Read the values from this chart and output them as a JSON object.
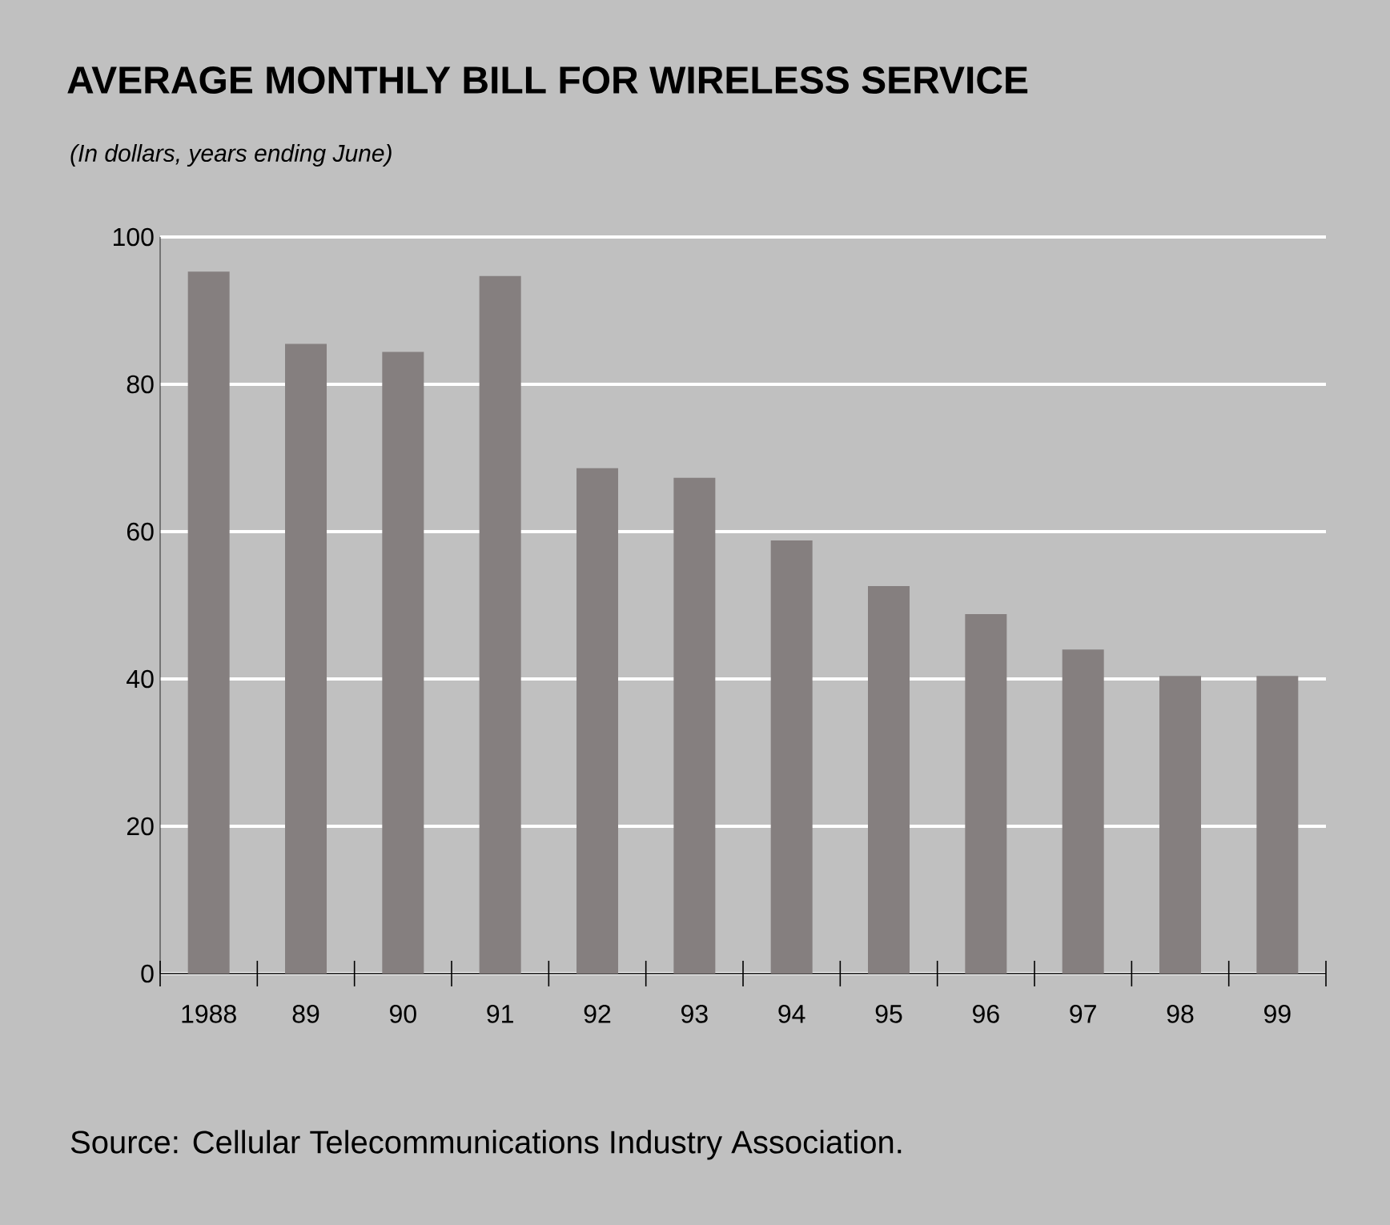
{
  "chart_data": {
    "type": "bar",
    "title": "AVERAGE MONTHLY BILL FOR WIRELESS SERVICE",
    "subtitle": "(In dollars, years ending June)",
    "categories": [
      "1988",
      "89",
      "90",
      "91",
      "92",
      "93",
      "94",
      "95",
      "96",
      "97",
      "98",
      "99"
    ],
    "values": [
      95.3,
      85.5,
      84.4,
      94.7,
      68.6,
      67.3,
      58.8,
      52.6,
      48.8,
      44.0,
      40.4,
      40.4
    ],
    "color": "#857f7f",
    "ylim": [
      0,
      100
    ],
    "yticks": [
      0,
      20,
      40,
      60,
      80,
      100
    ],
    "grid": "y",
    "annotations": [
      "Source: Cellular Telecommunications Industry Association."
    ]
  }
}
